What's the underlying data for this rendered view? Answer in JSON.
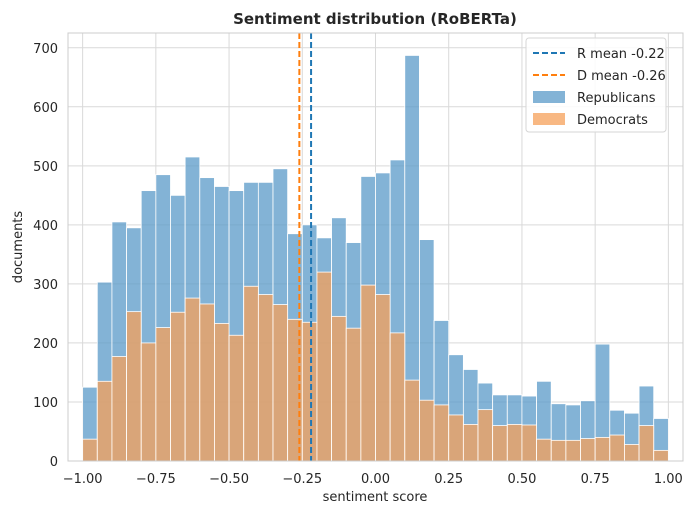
{
  "chart_data": {
    "type": "histogram",
    "title": "Sentiment distribution (RoBERTa)",
    "xlabel": "sentiment score",
    "ylabel": "documents",
    "xlim": [
      -1.05,
      1.05
    ],
    "ylim": [
      0,
      725
    ],
    "xticks": [
      -1.0,
      -0.75,
      -0.5,
      -0.25,
      0.0,
      0.25,
      0.5,
      0.75,
      1.0
    ],
    "xtick_labels": [
      "−1.00",
      "−0.75",
      "−0.50",
      "−0.25",
      "0.00",
      "0.25",
      "0.50",
      "0.75",
      "1.00"
    ],
    "yticks": [
      0,
      100,
      200,
      300,
      400,
      500,
      600,
      700
    ],
    "ytick_labels": [
      "0",
      "100",
      "200",
      "300",
      "400",
      "500",
      "600",
      "700"
    ],
    "grid": true,
    "legend_position": "top-right",
    "bins": {
      "start": -0.975,
      "width": 0.05,
      "count": 40
    },
    "series": [
      {
        "name": "Republicans",
        "color": "#5a9ac8",
        "values": [
          125,
          303,
          405,
          395,
          458,
          485,
          450,
          515,
          480,
          465,
          458,
          472,
          472,
          495,
          385,
          400,
          378,
          412,
          370,
          482,
          488,
          510,
          687,
          375,
          238,
          180,
          155,
          132,
          112,
          112,
          110,
          135,
          97,
          95,
          102,
          198,
          86,
          81,
          127,
          72
        ]
      },
      {
        "name": "Democrats",
        "color": "#f5a05a",
        "values": [
          37,
          135,
          177,
          253,
          200,
          226,
          252,
          276,
          266,
          233,
          213,
          296,
          282,
          265,
          240,
          235,
          320,
          245,
          225,
          298,
          282,
          217,
          137,
          103,
          95,
          78,
          62,
          87,
          60,
          62,
          61,
          37,
          35,
          35,
          38,
          40,
          44,
          28,
          60,
          18
        ]
      }
    ],
    "mean_lines": [
      {
        "label": "R mean -0.22",
        "value": -0.22,
        "color": "#1f77b4"
      },
      {
        "label": "D mean -0.26",
        "value": -0.26,
        "color": "#ff7f0e"
      }
    ]
  }
}
